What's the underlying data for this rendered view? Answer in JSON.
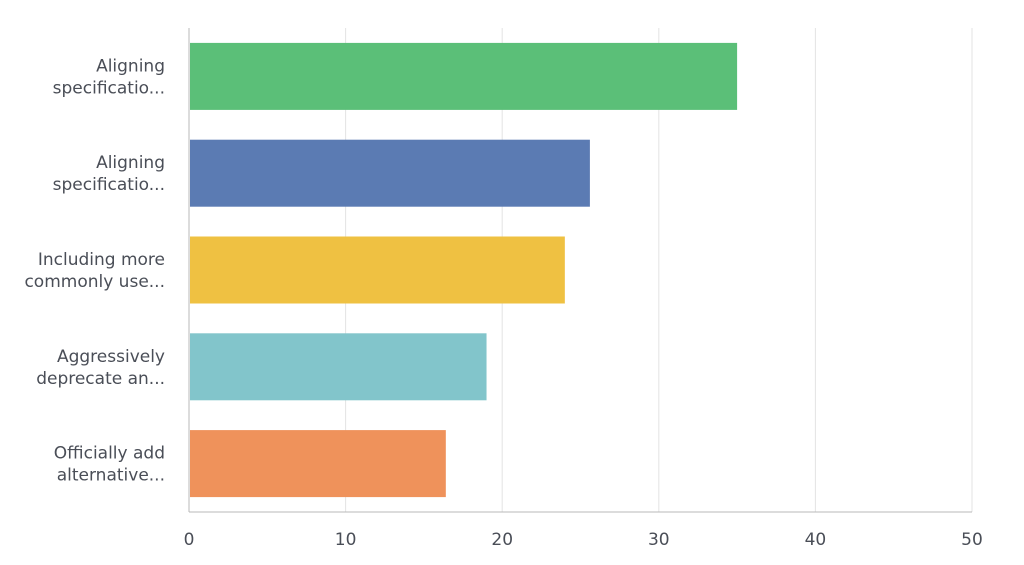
{
  "chart_data": {
    "type": "bar",
    "orientation": "horizontal",
    "categories": [
      [
        "Aligning",
        "specificatio..."
      ],
      [
        "Aligning",
        "specificatio..."
      ],
      [
        "Including more",
        "commonly use..."
      ],
      [
        "Aggressively",
        "deprecate an..."
      ],
      [
        "Officially add",
        "alternative..."
      ]
    ],
    "values": [
      35.0,
      25.6,
      24.0,
      19.0,
      16.4
    ],
    "colors": [
      "#5bbf78",
      "#5b7bb3",
      "#efc142",
      "#82c5cb",
      "#ef925b"
    ],
    "xlim": [
      0,
      50
    ],
    "xticks": [
      "0",
      "10",
      "20",
      "30",
      "40",
      "50"
    ],
    "grid": true,
    "title": "",
    "xlabel": "",
    "ylabel": ""
  }
}
